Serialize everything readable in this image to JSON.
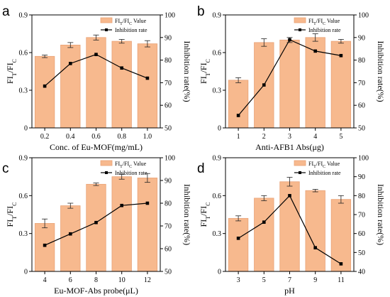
{
  "chart_data": [
    {
      "type": "bar",
      "panel_label": "a",
      "xlabel": "Conc. of Eu-MOF(mg/mL)",
      "ylabel_left": {
        "base": "FI",
        "sub1": "T",
        "mid": "/FI",
        "sub2": "C"
      },
      "ylabel_right": "Inhibition rate(%)",
      "categories": [
        "0.2",
        "0.4",
        "0.6",
        "0.8",
        "1.0"
      ],
      "ylim_left": [
        0,
        0.9
      ],
      "yticks_left": [
        "0",
        "0.3",
        "0.6",
        "0.9"
      ],
      "ylim_right": [
        50,
        100
      ],
      "yticks_right": [
        "50",
        "60",
        "70",
        "80",
        "90",
        "100"
      ],
      "series": [
        {
          "name": "FIT/FIC Value",
          "legend": {
            "base": "FI",
            "sub1": "T",
            "mid": "/FI",
            "sub2": "C",
            "tail": " Value"
          },
          "kind": "bar",
          "axis": "left",
          "values": [
            0.57,
            0.66,
            0.72,
            0.69,
            0.67
          ],
          "errors": [
            0.01,
            0.02,
            0.02,
            0.015,
            0.025
          ]
        },
        {
          "name": "Inhibition rate",
          "kind": "line",
          "axis": "right",
          "values": [
            68.5,
            78.5,
            82.5,
            76.5,
            72.0
          ]
        }
      ],
      "legend_position": "top-right"
    },
    {
      "type": "bar",
      "panel_label": "b",
      "xlabel": "Anti-AFB1 Abs(μg)",
      "ylabel_left": {
        "base": "FI",
        "sub1": "T",
        "mid": "/FI",
        "sub2": "C"
      },
      "ylabel_right": "Inhibition rate(%)",
      "categories": [
        "1",
        "2",
        "3",
        "4",
        "5"
      ],
      "ylim_left": [
        0,
        0.9
      ],
      "yticks_left": [
        "0",
        "0.3",
        "0.6",
        "0.9"
      ],
      "ylim_right": [
        50,
        100
      ],
      "yticks_right": [
        "50",
        "60",
        "70",
        "80",
        "90",
        "100"
      ],
      "series": [
        {
          "name": "FIT/FIC Value",
          "legend": {
            "base": "FI",
            "sub1": "T",
            "mid": "/FI",
            "sub2": "C",
            "tail": " Value"
          },
          "kind": "bar",
          "axis": "left",
          "values": [
            0.38,
            0.68,
            0.7,
            0.72,
            0.69
          ],
          "errors": [
            0.02,
            0.03,
            0.02,
            0.03,
            0.015
          ]
        },
        {
          "name": "Inhibition rate",
          "kind": "line",
          "axis": "right",
          "values": [
            55.5,
            69.0,
            89.0,
            84.0,
            82.0
          ]
        }
      ],
      "legend_position": "top-right"
    },
    {
      "type": "bar",
      "panel_label": "c",
      "xlabel": "Eu-MOF-Abs probe(μL)",
      "ylabel_left": {
        "base": "FI",
        "sub1": "T",
        "mid": "/FI",
        "sub2": "C"
      },
      "ylabel_right": "Inhibition rate(%)",
      "categories": [
        "4",
        "6",
        "8",
        "10",
        "12"
      ],
      "ylim_left": [
        0,
        0.9
      ],
      "yticks_left": [
        "0",
        "0.3",
        "0.6",
        "0.9"
      ],
      "ylim_right": [
        50,
        100
      ],
      "yticks_right": [
        "50",
        "60",
        "70",
        "80",
        "90",
        "100"
      ],
      "series": [
        {
          "name": "FIT/FIC Value",
          "legend": {
            "base": "FI",
            "sub1": "T",
            "mid": "/FI",
            "sub2": "C",
            "tail": " Value"
          },
          "kind": "bar",
          "axis": "left",
          "values": [
            0.38,
            0.52,
            0.69,
            0.75,
            0.74
          ],
          "errors": [
            0.035,
            0.02,
            0.01,
            0.02,
            0.035
          ]
        },
        {
          "name": "Inhibition rate",
          "kind": "line",
          "axis": "right",
          "values": [
            61.5,
            66.5,
            71.5,
            79.0,
            80.0
          ]
        }
      ],
      "legend_position": "top-right"
    },
    {
      "type": "bar",
      "panel_label": "d",
      "xlabel": "pH",
      "ylabel_left": {
        "base": "FI",
        "sub1": "T",
        "mid": "/FI",
        "sub2": "C"
      },
      "ylabel_right": "Inhibition rate(%)",
      "categories": [
        "3",
        "5",
        "7",
        "9",
        "11"
      ],
      "ylim_left": [
        0,
        0.9
      ],
      "yticks_left": [
        "0",
        "0.3",
        "0.6",
        "0.9"
      ],
      "ylim_right": [
        40,
        100
      ],
      "yticks_right": [
        "40",
        "50",
        "60",
        "70",
        "80",
        "90",
        "100"
      ],
      "series": [
        {
          "name": "FIT/FIC Value",
          "legend": {
            "base": "FI",
            "sub1": "T",
            "mid": "/FI",
            "sub2": "C",
            "tail": " Value"
          },
          "kind": "bar",
          "axis": "left",
          "values": [
            0.42,
            0.58,
            0.71,
            0.64,
            0.57
          ],
          "errors": [
            0.02,
            0.02,
            0.035,
            0.01,
            0.03
          ]
        },
        {
          "name": "Inhibition rate",
          "kind": "line",
          "axis": "right",
          "values": [
            57.5,
            66.0,
            80.0,
            52.5,
            44.0
          ]
        }
      ],
      "legend_position": "top-right"
    }
  ],
  "colors": {
    "bar_fill": "#f7b98e",
    "bar_stroke": "#e9a276",
    "line": "#000000",
    "axis": "#000000"
  }
}
